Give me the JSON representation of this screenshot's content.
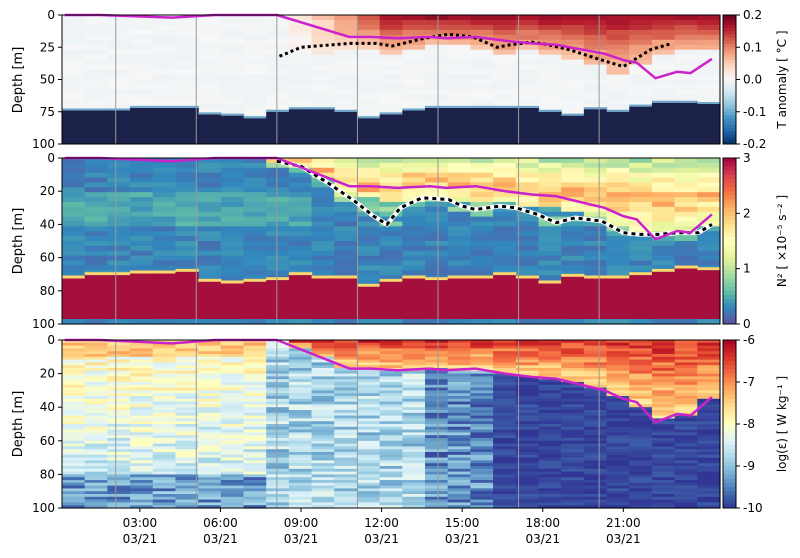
{
  "chart_data": [
    {
      "type": "heatmap",
      "panel": "temperature-anomaly",
      "ylabel": "Depth [m]",
      "ylim": [
        100,
        0
      ],
      "yticks": [
        0,
        25,
        50,
        75,
        100
      ],
      "colorbar_label": "T anomaly [ °C ]",
      "colorbar_ticks": [
        "0.2",
        "0.1",
        "0.0",
        "-0.1",
        "-0.2"
      ],
      "clim": [
        -0.2,
        0.2
      ],
      "colormap": "RdBu_r",
      "bottom_depth": [
        74,
        74,
        74,
        72,
        72,
        72,
        77,
        78,
        80,
        75,
        73,
        73,
        75,
        80,
        77,
        74,
        72,
        72,
        72,
        72,
        72,
        75,
        78,
        73,
        75,
        71,
        68,
        68,
        69
      ],
      "mixed_layer": {
        "x": [
          0.2,
          1.5,
          4.2,
          5.8,
          6.8,
          8.1,
          10.8,
          11.6,
          12.6,
          13.8,
          14.4,
          15.5,
          16.6,
          17.6,
          18.5,
          19.0,
          20.3,
          21.0,
          21.5,
          22.2,
          23.0,
          23.5,
          24.3
        ],
        "depth": [
          0,
          0,
          2,
          0,
          0,
          0,
          17,
          17,
          18,
          17,
          18,
          17,
          20,
          22,
          23,
          25,
          30,
          35,
          37,
          49,
          44,
          45,
          34
        ]
      },
      "warm_isotherm": {
        "x": [
          8.2,
          9.0,
          10.8,
          11.8,
          12.4,
          13.6,
          14.5,
          15.4,
          16.3,
          16.8,
          17.6,
          18.2,
          19.0,
          20.2,
          21.0,
          22.0,
          22.8
        ],
        "depth": [
          32,
          25,
          22,
          22,
          24,
          18,
          15,
          17,
          25,
          23,
          21,
          23,
          27,
          35,
          40,
          27,
          22
        ]
      }
    },
    {
      "type": "heatmap",
      "panel": "stratification",
      "ylabel": "Depth [m]",
      "ylim": [
        100,
        0
      ],
      "yticks": [
        0,
        20,
        40,
        60,
        80,
        100
      ],
      "colorbar_label": "N² [ ×10⁻⁵ s⁻² ]",
      "colorbar_ticks": [
        "3",
        "2",
        "1",
        "0"
      ],
      "clim": [
        0,
        3
      ],
      "colormap": "Spectral_r",
      "bottom_depth": [
        72,
        70,
        70,
        69,
        69,
        68,
        74,
        75,
        74,
        73,
        70,
        72,
        72,
        77,
        74,
        72,
        73,
        72,
        72,
        70,
        72,
        75,
        71,
        72,
        72,
        70,
        68,
        66,
        67
      ],
      "mixed_layer": {
        "x": [
          0.2,
          1.5,
          4.2,
          5.8,
          6.8,
          8.1,
          10.8,
          11.6,
          12.6,
          13.8,
          14.4,
          15.5,
          16.6,
          17.6,
          18.5,
          19.0,
          20.3,
          21.0,
          21.5,
          22.2,
          23.0,
          23.5,
          24.3
        ],
        "depth": [
          0,
          0,
          2,
          0,
          0,
          0,
          17,
          17,
          18,
          17,
          18,
          17,
          20,
          22,
          23,
          25,
          30,
          35,
          37,
          49,
          44,
          45,
          34
        ]
      },
      "pycnocline": {
        "x": [
          8.1,
          9.0,
          10.0,
          11.0,
          11.7,
          12.2,
          12.7,
          13.5,
          14.5,
          15.0,
          15.5,
          16.4,
          17.0,
          17.8,
          18.5,
          19.2,
          20.2,
          21.0,
          21.6,
          22.3,
          23.0,
          23.8,
          24.3
        ],
        "depth": [
          2,
          5,
          15,
          26,
          35,
          40,
          30,
          24,
          25,
          29,
          31,
          29,
          30,
          34,
          39,
          36,
          38,
          45,
          46,
          46,
          45,
          45,
          40
        ]
      }
    },
    {
      "type": "heatmap",
      "panel": "dissipation",
      "ylabel": "Depth [m]",
      "ylim": [
        100,
        0
      ],
      "yticks": [
        0,
        20,
        40,
        60,
        80,
        100
      ],
      "colorbar_label": "log(ε) [ W kg⁻¹ ]",
      "colorbar_ticks": [
        "-6",
        "-7",
        "-8",
        "-9",
        "-10"
      ],
      "clim": [
        -10,
        -6
      ],
      "colormap": "RdYlBu_r",
      "mixed_layer": {
        "x": [
          0.2,
          1.5,
          4.2,
          5.8,
          6.8,
          8.1,
          10.8,
          11.6,
          12.6,
          13.8,
          14.4,
          15.5,
          16.6,
          17.6,
          18.5,
          19.0,
          20.3,
          21.0,
          21.5,
          22.2,
          23.0,
          23.5,
          24.3
        ],
        "depth": [
          0,
          0,
          2,
          0,
          0,
          0,
          17,
          17,
          18,
          17,
          18,
          17,
          20,
          22,
          23,
          25,
          30,
          35,
          37,
          49,
          44,
          45,
          34
        ]
      },
      "xticks": [
        {
          "hour": 3,
          "time": "03:00",
          "date": "03/21"
        },
        {
          "hour": 6,
          "time": "06:00",
          "date": "03/21"
        },
        {
          "hour": 9,
          "time": "09:00",
          "date": "03/21"
        },
        {
          "hour": 12,
          "time": "12:00",
          "date": "03/21"
        },
        {
          "hour": 15,
          "time": "15:00",
          "date": "03/21"
        },
        {
          "hour": 18,
          "time": "18:00",
          "date": "03/21"
        },
        {
          "hour": 21,
          "time": "21:00",
          "date": "03/21"
        }
      ]
    }
  ],
  "xlim_hours": [
    0.1,
    24.6
  ],
  "grid_hours": [
    2.1,
    5.1,
    8.1,
    11.1,
    14.1,
    17.1,
    20.1
  ],
  "colors": {
    "mixed_layer_line": "#cc22cc",
    "bottom_fill_T": "#1b2149",
    "bottom_fill_N2": "#a50f3e",
    "dashed_line": "#000000",
    "gridline": "#9a9a9a"
  }
}
